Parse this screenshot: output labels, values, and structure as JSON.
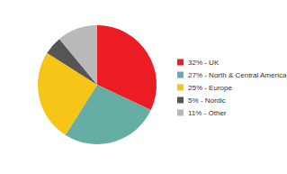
{
  "chart_data": {
    "type": "pie",
    "categories": [
      "32% - UK",
      "27% - North & Central America",
      "25% - Europe",
      "5% - Nordic",
      "11% - Other"
    ],
    "values": [
      32,
      27,
      25,
      5,
      11
    ],
    "colors": [
      "#ec1c24",
      "#66ada4",
      "#f5c518",
      "#555555",
      "#b9b9b9"
    ],
    "legend": "right"
  }
}
